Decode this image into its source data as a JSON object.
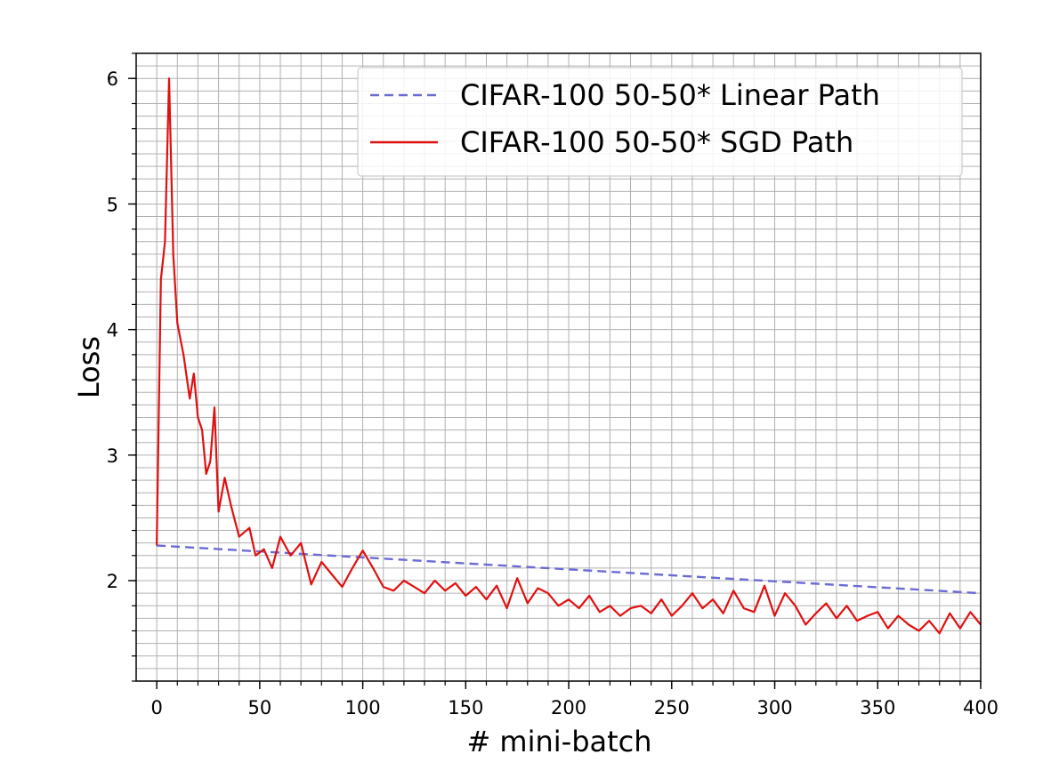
{
  "chart_data": {
    "type": "line",
    "title": "",
    "xlabel": "# mini-batch",
    "ylabel": "Loss",
    "xlim": [
      -10,
      400
    ],
    "ylim": [
      1.2,
      6.2
    ],
    "xticks": [
      0,
      50,
      100,
      150,
      200,
      250,
      300,
      350,
      400
    ],
    "xtick_labels": [
      "0",
      "50",
      "100",
      "150",
      "200",
      "250",
      "300",
      "350",
      "400"
    ],
    "yticks": [
      2,
      3,
      4,
      5,
      6
    ],
    "ytick_labels": [
      "2",
      "3",
      "4",
      "5",
      "6"
    ],
    "grid": true,
    "legend_position": "top-right",
    "series": [
      {
        "name": "CIFAR-100 50-50* Linear Path",
        "style": "dashed",
        "color": "#6b6bd6",
        "x": [
          0,
          400
        ],
        "y": [
          2.28,
          1.9
        ]
      },
      {
        "name": "CIFAR-100 50-50* SGD Path",
        "style": "solid",
        "color": "#e01010",
        "x": [
          0,
          2,
          4,
          6,
          8,
          10,
          13,
          16,
          18,
          20,
          22,
          24,
          26,
          28,
          30,
          33,
          36,
          40,
          45,
          48,
          52,
          56,
          60,
          65,
          70,
          75,
          80,
          85,
          90,
          95,
          100,
          105,
          110,
          115,
          120,
          125,
          130,
          135,
          140,
          145,
          150,
          155,
          160,
          165,
          170,
          175,
          180,
          185,
          190,
          195,
          200,
          205,
          210,
          215,
          220,
          225,
          230,
          235,
          240,
          245,
          250,
          255,
          260,
          265,
          270,
          275,
          280,
          285,
          290,
          295,
          300,
          305,
          310,
          315,
          320,
          325,
          330,
          335,
          340,
          345,
          350,
          355,
          360,
          365,
          370,
          375,
          380,
          385,
          390,
          395,
          400
        ],
        "y": [
          2.28,
          4.4,
          4.7,
          6.0,
          4.6,
          4.05,
          3.8,
          3.45,
          3.65,
          3.3,
          3.2,
          2.85,
          2.95,
          3.38,
          2.55,
          2.82,
          2.6,
          2.35,
          2.42,
          2.2,
          2.25,
          2.1,
          2.35,
          2.2,
          2.3,
          1.97,
          2.15,
          2.05,
          1.95,
          2.1,
          2.24,
          2.1,
          1.95,
          1.92,
          2.0,
          1.95,
          1.9,
          2.0,
          1.92,
          1.98,
          1.88,
          1.95,
          1.85,
          1.96,
          1.78,
          2.02,
          1.82,
          1.94,
          1.9,
          1.8,
          1.85,
          1.78,
          1.88,
          1.75,
          1.8,
          1.72,
          1.78,
          1.8,
          1.74,
          1.85,
          1.72,
          1.8,
          1.9,
          1.78,
          1.85,
          1.74,
          1.92,
          1.78,
          1.75,
          1.96,
          1.72,
          1.9,
          1.8,
          1.65,
          1.74,
          1.82,
          1.7,
          1.8,
          1.68,
          1.72,
          1.75,
          1.62,
          1.72,
          1.65,
          1.6,
          1.68,
          1.58,
          1.74,
          1.62,
          1.75,
          1.65
        ]
      }
    ]
  }
}
